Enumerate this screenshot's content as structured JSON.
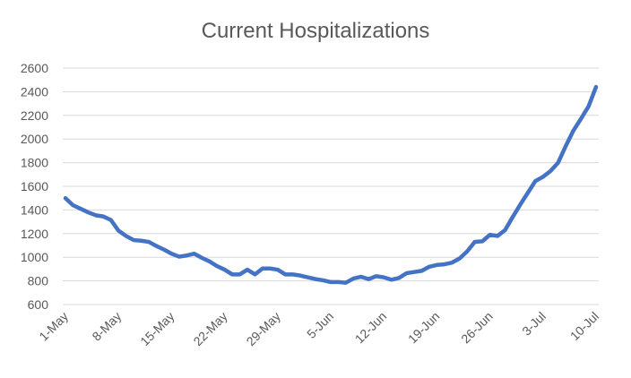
{
  "chart_data": {
    "type": "line",
    "title": "Current Hospitalizations",
    "xlabel": "",
    "ylabel": "",
    "ylim": [
      600,
      2600
    ],
    "yticks": [
      600,
      800,
      1000,
      1200,
      1400,
      1600,
      1800,
      2000,
      2200,
      2400,
      2600
    ],
    "xtick_labels": [
      "1-May",
      "8-May",
      "15-May",
      "22-May",
      "29-May",
      "5-Jun",
      "12-Jun",
      "19-Jun",
      "26-Jun",
      "3-Jul",
      "10-Jul"
    ],
    "xtick_indices": [
      0,
      7,
      14,
      21,
      28,
      35,
      42,
      49,
      56,
      63,
      70
    ],
    "grid": true,
    "legend": "none",
    "color": "#4472c4",
    "series": [
      {
        "dates": [
          "1-May",
          "2-May",
          "3-May",
          "4-May",
          "5-May",
          "6-May",
          "7-May",
          "8-May",
          "9-May",
          "10-May",
          "11-May",
          "12-May",
          "13-May",
          "14-May",
          "15-May",
          "16-May",
          "17-May",
          "18-May",
          "19-May",
          "20-May",
          "21-May",
          "22-May",
          "23-May",
          "24-May",
          "25-May",
          "26-May",
          "27-May",
          "28-May",
          "29-May",
          "30-May",
          "31-May",
          "1-Jun",
          "2-Jun",
          "3-Jun",
          "4-Jun",
          "5-Jun",
          "6-Jun",
          "7-Jun",
          "8-Jun",
          "9-Jun",
          "10-Jun",
          "11-Jun",
          "12-Jun",
          "13-Jun",
          "14-Jun",
          "15-Jun",
          "16-Jun",
          "17-Jun",
          "18-Jun",
          "19-Jun",
          "20-Jun",
          "21-Jun",
          "22-Jun",
          "23-Jun",
          "24-Jun",
          "25-Jun",
          "26-Jun",
          "27-Jun",
          "28-Jun",
          "29-Jun",
          "30-Jun",
          "1-Jul",
          "2-Jul",
          "3-Jul",
          "4-Jul",
          "5-Jul",
          "6-Jul",
          "7-Jul",
          "8-Jul",
          "9-Jul",
          "10-Jul"
        ],
        "values": [
          1500,
          1440,
          1410,
          1380,
          1355,
          1345,
          1315,
          1225,
          1180,
          1145,
          1140,
          1130,
          1095,
          1065,
          1030,
          1005,
          1015,
          1030,
          995,
          965,
          925,
          895,
          855,
          855,
          895,
          855,
          905,
          905,
          895,
          855,
          855,
          845,
          830,
          815,
          805,
          790,
          790,
          785,
          820,
          835,
          815,
          840,
          830,
          810,
          825,
          865,
          875,
          885,
          920,
          935,
          940,
          955,
          990,
          1050,
          1130,
          1135,
          1190,
          1180,
          1230,
          1340,
          1445,
          1545,
          1645,
          1680,
          1730,
          1800,
          1940,
          2070,
          2170,
          2275,
          2440
        ]
      }
    ]
  }
}
